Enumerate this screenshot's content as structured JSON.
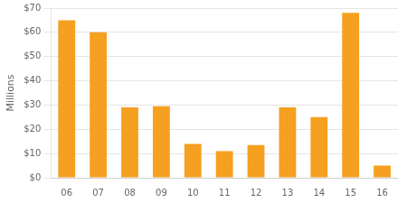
{
  "chart_data": {
    "type": "bar",
    "categories": [
      "06",
      "07",
      "08",
      "09",
      "10",
      "11",
      "12",
      "13",
      "14",
      "15",
      "16"
    ],
    "values": [
      65,
      60,
      29,
      29.5,
      14,
      11,
      13.5,
      29,
      25,
      68,
      5
    ],
    "color": "#F5A020",
    "ylabel": "Millions",
    "ylim": [
      0,
      70
    ],
    "yticks": [
      {
        "value": 0,
        "label": "$0"
      },
      {
        "value": 10,
        "label": "$10"
      },
      {
        "value": 20,
        "label": "$20"
      },
      {
        "value": 30,
        "label": "$30"
      },
      {
        "value": 40,
        "label": "$40"
      },
      {
        "value": 50,
        "label": "$50"
      },
      {
        "value": 60,
        "label": "$60"
      },
      {
        "value": 70,
        "label": "$70"
      }
    ],
    "grid": true
  }
}
